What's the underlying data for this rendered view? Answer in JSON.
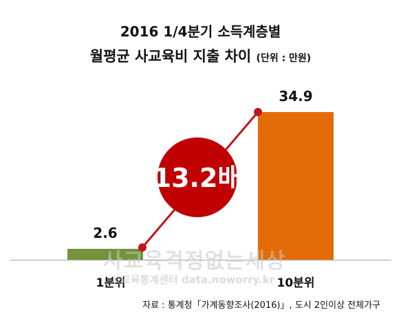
{
  "title": {
    "line1": "2016 1/4분기 소득계층별",
    "line2": "월평균 사교육비 지출 차이",
    "unit": "(단위 : 만원)"
  },
  "chart_data": {
    "type": "bar",
    "categories": [
      "1분위",
      "10분위"
    ],
    "values": [
      2.6,
      34.9
    ],
    "data_labels": [
      "2.6",
      "34.9"
    ],
    "colors": [
      "#76923c",
      "#e36c09"
    ],
    "ylim": [
      0,
      40
    ],
    "annotation": {
      "text": "13.2배",
      "circle_color": "#c00000",
      "text_color": "#ffffff",
      "connector_color": "#c0161e"
    }
  },
  "watermark": {
    "line1": "사교육걱정없는세상",
    "line2": "사교육통계센터 data.noworry.kr"
  },
  "source": "자료 : 통계청「가계동향조사(2016)」, 도시 2인이상 전체가구"
}
